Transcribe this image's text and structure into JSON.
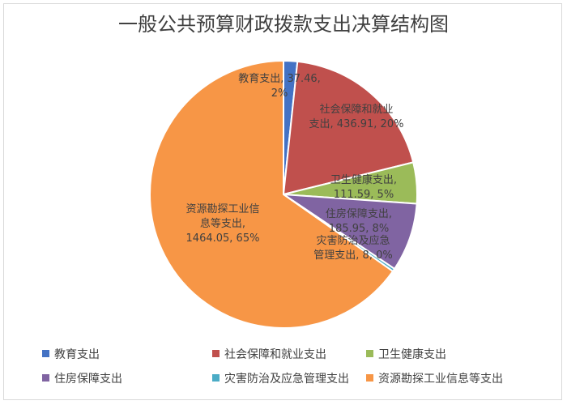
{
  "chart_data": {
    "type": "pie",
    "title": "一般公共预算财政拨款支出决算结构图",
    "slices": [
      {
        "name": "教育支出",
        "value": 37.46,
        "percent": "2%",
        "color": "#4472C4"
      },
      {
        "name": "社会保障和就业支出",
        "value": 436.91,
        "percent": "20%",
        "color": "#C0504D"
      },
      {
        "name": "卫生健康支出",
        "value": 111.59,
        "percent": "5%",
        "color": "#9BBB59"
      },
      {
        "name": "住房保障支出",
        "value": 185.95,
        "percent": "8%",
        "color": "#8064A2"
      },
      {
        "name": "灾害防治及应急管理支出",
        "value": 8,
        "percent": "0%",
        "color": "#4BACC6"
      },
      {
        "name": "资源勘探工业信息等支出",
        "value": 1464.05,
        "percent": "65%",
        "color": "#F79646"
      }
    ],
    "data_labels": [
      [
        "教育支出, 37.46,",
        "2%"
      ],
      [
        "社会保障和就业",
        "支出, 436.91, 20%"
      ],
      [
        "卫生健康支出,",
        "111.59, 5%"
      ],
      [
        "住房保障支出,",
        "185.95, 8%"
      ],
      [
        "灾害防治及应急",
        "管理支出, 8, 0%"
      ],
      [
        "资源勘探工业信",
        "息等支出,",
        "1464.05, 65%"
      ]
    ],
    "legend_position": "bottom"
  }
}
